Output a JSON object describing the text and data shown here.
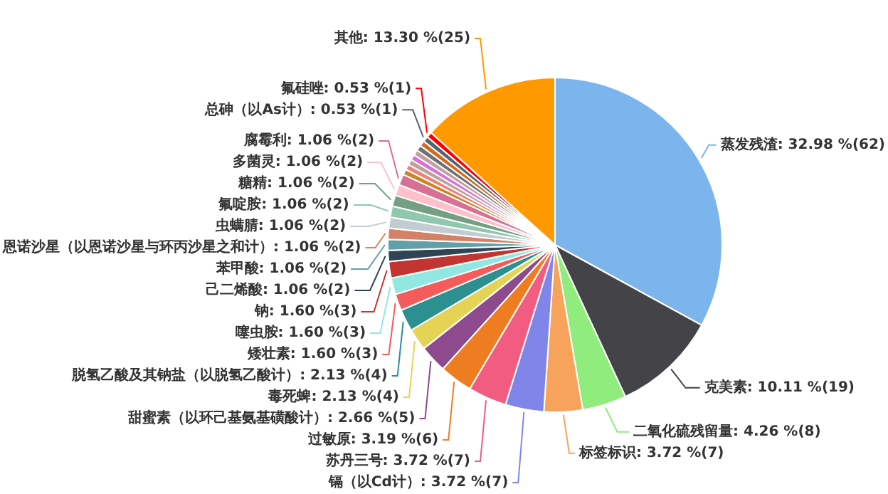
{
  "chart_data": {
    "type": "pie",
    "categories": [
      "蒸发残渣",
      "克美素",
      "二氧化硫残留量",
      "标签标识",
      "镉（以Cd计）",
      "苏丹三号",
      "过敏原",
      "甜蜜素（以环己基氨基磺酸计）",
      "毒死蜱",
      "脱氢乙酸及其钠盐（以脱氢乙酸计）",
      "矮壮素",
      "噻虫胺",
      "钠",
      "己二烯酸",
      "苯甲酸",
      "恩诺沙星（以恩诺沙星与环丙沙星之和计）",
      "虫螨腈",
      "氟啶胺",
      "糖精",
      "多菌灵",
      "腐霉利",
      null,
      null,
      null,
      null,
      null,
      null,
      null,
      "总砷（以As计）",
      "氟硅唑",
      "其他"
    ],
    "values": [
      62,
      19,
      8,
      7,
      7,
      7,
      6,
      5,
      4,
      4,
      3,
      3,
      3,
      2,
      2,
      2,
      2,
      2,
      2,
      2,
      2,
      1,
      1,
      1,
      1,
      1,
      1,
      1,
      1,
      1,
      25
    ],
    "value_labels": [
      "32.98 %(62)",
      "10.11 %(19)",
      "4.26 %(8)",
      "3.72 %(7)",
      "3.72 %(7)",
      "3.72 %(7)",
      "3.19 %(6)",
      "2.66 %(5)",
      "2.13 %(4)",
      "2.13 %(4)",
      "1.60 %(3)",
      "1.60 %(3)",
      "1.60 %(3)",
      "1.06 %(2)",
      "1.06 %(2)",
      "1.06 %(2)",
      "1.06 %(2)",
      "1.06 %(2)",
      "1.06 %(2)",
      "1.06 %(2)",
      "1.06 %(2)",
      null,
      null,
      null,
      null,
      null,
      null,
      null,
      "0.53 %(1)",
      "0.53 %(1)",
      "13.30 %(25)"
    ],
    "colors": [
      "#7cb5ec",
      "#434348",
      "#90ed7d",
      "#f7a35c",
      "#8085e9",
      "#f15c80",
      "#ee7d21",
      "#8d4a8c",
      "#e4d354",
      "#2b908f",
      "#f45b5b",
      "#91e8e1",
      "#c23531",
      "#2f4554",
      "#61a0a8",
      "#d48265",
      "#c4ccd3",
      "#91c7ae",
      "#749f83",
      "#ffc0cb",
      "#d87093",
      "#ca8622",
      "#f08080",
      "#bda29a",
      "#da70d6",
      "#c0a0a0",
      "#6e7074",
      "#d2691e",
      "#546570",
      "#ff0000",
      "#ff9900"
    ]
  }
}
